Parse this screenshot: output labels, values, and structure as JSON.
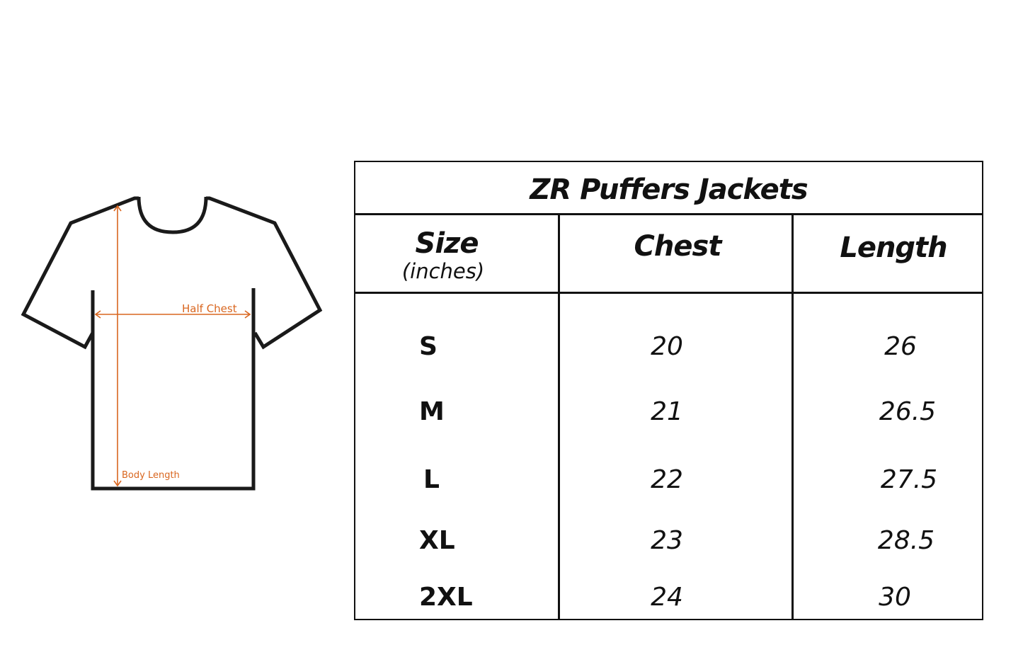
{
  "diagram": {
    "half_chest_label": "Half Chest",
    "body_length_label": "Body Length",
    "outline_color": "#1a1a1a",
    "measure_color": "#d9661f"
  },
  "table": {
    "title": "ZR Puffers Jackets",
    "headers": {
      "size": "Size",
      "size_unit": "(inches)",
      "chest": "Chest",
      "length": "Length"
    },
    "rows": [
      {
        "size": "S",
        "chest": "20",
        "length": "26"
      },
      {
        "size": "M",
        "chest": "21",
        "length": "26.5"
      },
      {
        "size": "L",
        "chest": "22",
        "length": "27.5"
      },
      {
        "size": "XL",
        "chest": "23",
        "length": "28.5"
      },
      {
        "size": "2XL",
        "chest": "24",
        "length": "30"
      }
    ]
  }
}
